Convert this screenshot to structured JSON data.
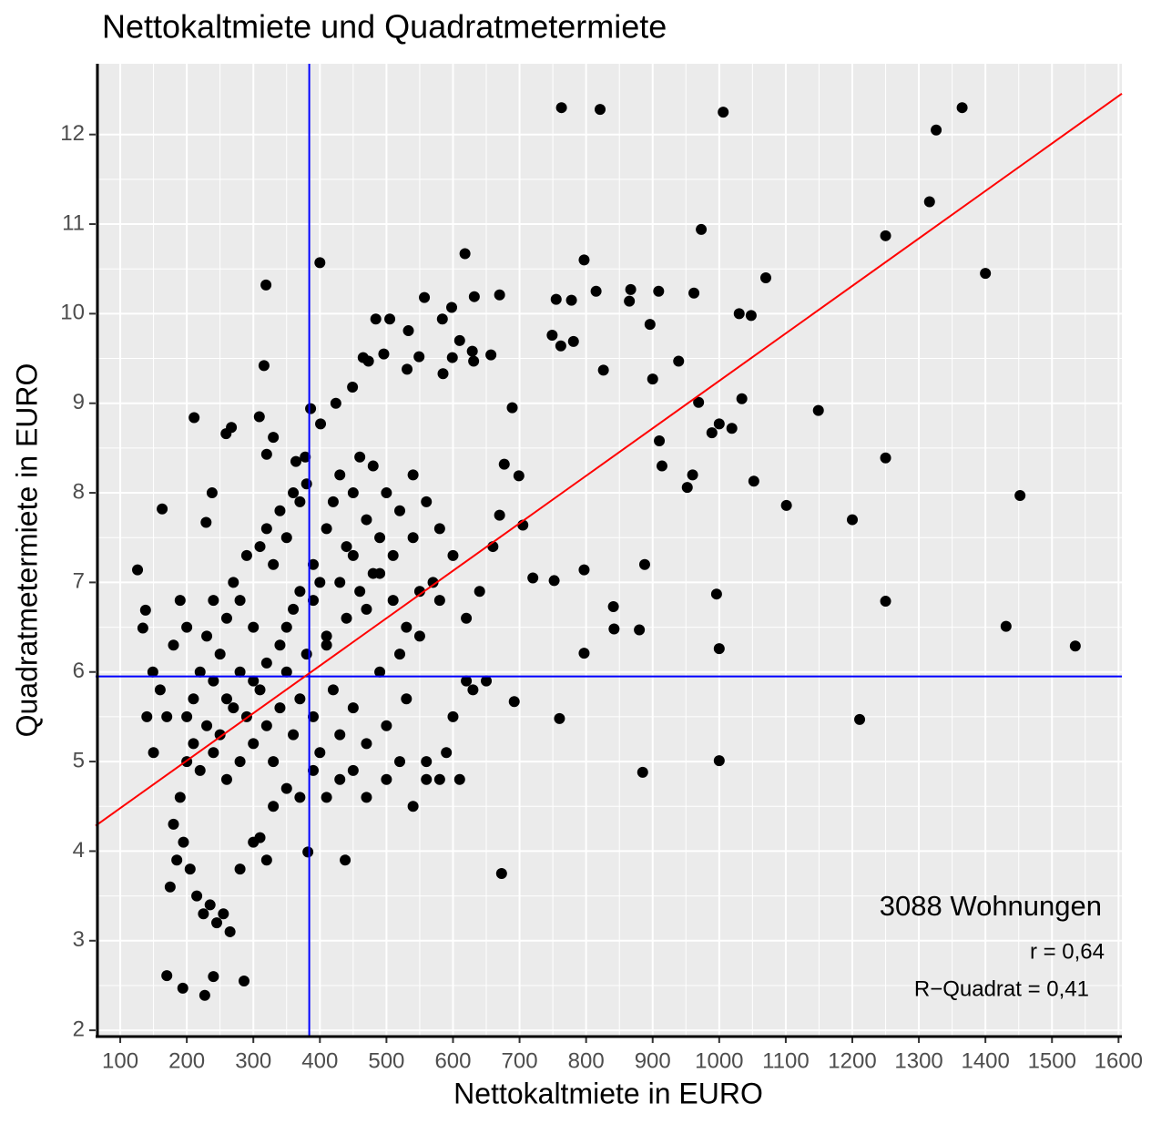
{
  "chart_data": {
    "type": "scatter",
    "title": "Nettokaltmiete und Quadratmetermiete",
    "x_label": "Nettokaltmiete in EURO",
    "y_label": "Quadratmetermiete in EURO",
    "annotations": [
      "3088 Wohnungen",
      "r = 0,64",
      "R−Quadrat = 0,41"
    ],
    "color": "#000000",
    "grid": true,
    "xlim": [
      63,
      1605
    ],
    "ylim": [
      1.93,
      12.79
    ],
    "xticks": [
      100,
      200,
      300,
      400,
      500,
      600,
      700,
      800,
      900,
      1000,
      1100,
      1200,
      1300,
      1400,
      1500,
      1600
    ],
    "yticks": [
      2,
      3,
      4,
      5,
      6,
      7,
      8,
      9,
      10,
      11,
      12
    ],
    "mean_lines": {
      "x": 384,
      "y": 5.95,
      "color": "#0000ff"
    },
    "regression": {
      "intercept": 3.95,
      "slope": 0.0053,
      "color": "#ff0000"
    },
    "x": [
      763,
      821,
      1006,
      1365,
      1326,
      1316,
      1250,
      1400,
      973,
      319,
      400,
      618,
      797,
      1070,
      1030,
      1048,
      1149,
      1101,
      1200,
      1250,
      1452,
      1250,
      996,
      1000,
      1431,
      1535,
      1211,
      1000,
      885,
      673,
      438,
      382,
      227,
      286,
      170,
      240,
      194,
      211,
      316,
      969,
      989,
      1034,
      939,
      900,
      910,
      914,
      960,
      952,
      1052,
      1019,
      1000,
      888,
      841,
      842,
      797,
      760,
      692,
      880,
      797,
      752,
      720,
      705,
      699,
      670,
      677,
      689,
      749,
      762,
      781,
      826,
      896,
      909,
      962,
      865,
      815,
      867,
      755,
      778,
      670,
      632,
      598,
      557,
      584,
      533,
      484,
      505,
      496,
      549,
      531,
      599,
      629,
      657,
      631,
      610,
      585,
      465,
      473,
      449,
      424,
      386,
      401,
      330,
      259,
      267,
      309,
      378,
      364,
      320,
      126,
      163,
      138,
      134,
      149,
      229,
      238,
      200,
      210,
      220,
      230,
      240,
      250,
      260,
      270,
      280,
      290,
      300,
      310,
      320,
      330,
      340,
      350,
      360,
      370,
      380,
      390,
      400,
      410,
      420,
      430,
      440,
      450,
      460,
      470,
      480,
      490,
      500,
      510,
      520,
      530,
      540,
      550,
      560,
      570,
      580,
      600,
      620,
      640,
      660,
      190,
      180,
      175,
      185,
      195,
      205,
      215,
      225,
      235,
      245,
      255,
      265,
      160,
      170,
      150,
      140,
      250,
      260,
      270,
      280,
      290,
      300,
      310,
      320,
      330,
      340,
      350,
      360,
      370,
      380,
      390,
      400,
      410,
      420,
      430,
      440,
      450,
      460,
      470,
      480,
      490,
      500,
      520,
      540,
      560,
      580,
      330,
      350,
      370,
      390,
      410,
      430,
      450,
      470,
      500,
      520,
      540,
      560,
      580,
      610,
      590,
      600,
      620,
      650,
      630,
      300,
      310,
      320,
      280,
      240,
      230,
      220,
      210,
      200,
      190,
      200,
      180,
      350,
      370,
      390,
      410,
      430,
      450,
      470,
      490,
      510,
      530,
      550,
      300,
      320,
      340,
      360,
      280,
      260,
      240
    ],
    "values": [
      12.3,
      12.28,
      12.25,
      12.3,
      12.05,
      11.25,
      10.87,
      10.45,
      10.94,
      10.32,
      10.57,
      10.67,
      10.6,
      10.4,
      10,
      9.98,
      8.92,
      7.86,
      7.7,
      8.39,
      7.97,
      6.79,
      6.87,
      6.26,
      6.51,
      6.29,
      5.47,
      5.01,
      4.88,
      3.75,
      3.9,
      3.99,
      2.39,
      2.55,
      2.61,
      2.6,
      2.47,
      8.84,
      9.42,
      9.01,
      8.67,
      9.05,
      9.47,
      9.27,
      8.58,
      8.3,
      8.2,
      8.06,
      8.13,
      8.72,
      8.77,
      7.2,
      6.73,
      6.48,
      6.21,
      5.48,
      5.67,
      6.47,
      7.14,
      7.02,
      7.05,
      7.64,
      8.19,
      7.75,
      8.32,
      8.95,
      9.76,
      9.64,
      9.69,
      9.37,
      9.88,
      10.25,
      10.23,
      10.14,
      10.25,
      10.27,
      10.16,
      10.15,
      10.21,
      10.19,
      10.07,
      10.18,
      9.94,
      9.81,
      9.94,
      9.94,
      9.55,
      9.52,
      9.38,
      9.51,
      9.58,
      9.54,
      9.47,
      9.7,
      9.33,
      9.51,
      9.47,
      9.18,
      9.0,
      8.94,
      8.77,
      8.62,
      8.66,
      8.73,
      8.85,
      8.4,
      8.35,
      8.43,
      7.14,
      7.82,
      6.69,
      6.49,
      6.0,
      7.67,
      8.0,
      5.0,
      5.2,
      4.9,
      5.4,
      5.1,
      5.3,
      4.8,
      5.6,
      5.0,
      5.5,
      5.2,
      5.8,
      5.4,
      5.0,
      5.6,
      6.0,
      5.3,
      5.7,
      6.2,
      5.5,
      5.1,
      6.4,
      5.8,
      5.3,
      6.6,
      5.6,
      6.9,
      5.2,
      7.1,
      6.0,
      5.4,
      7.3,
      6.2,
      5.7,
      7.5,
      6.4,
      5.0,
      7.0,
      6.8,
      7.3,
      6.6,
      6.9,
      7.4,
      4.6,
      4.3,
      3.6,
      3.9,
      4.1,
      3.8,
      3.5,
      3.3,
      3.4,
      3.2,
      3.3,
      3.1,
      5.8,
      5.5,
      5.1,
      5.5,
      6.2,
      6.6,
      7.0,
      6.8,
      7.3,
      6.5,
      7.4,
      7.6,
      7.2,
      7.8,
      7.5,
      8.0,
      7.9,
      8.1,
      6.8,
      7.0,
      7.6,
      7.9,
      8.2,
      7.4,
      8.0,
      8.4,
      7.7,
      8.3,
      7.5,
      8.0,
      7.8,
      8.2,
      7.9,
      7.6,
      4.5,
      4.7,
      4.6,
      4.9,
      4.6,
      4.8,
      4.9,
      4.6,
      4.8,
      5.0,
      4.5,
      4.8,
      4.8,
      4.8,
      5.1,
      5.5,
      5.9,
      5.9,
      5.8,
      4.1,
      4.15,
      3.9,
      3.8,
      6.8,
      6.4,
      6.0,
      5.7,
      5.5,
      6.8,
      6.5,
      6.3,
      6.5,
      6.9,
      7.2,
      6.3,
      7.0,
      7.3,
      6.7,
      7.1,
      6.8,
      6.5,
      6.9,
      5.9,
      6.1,
      6.3,
      6.7,
      6.0,
      5.7,
      5.9
    ]
  }
}
